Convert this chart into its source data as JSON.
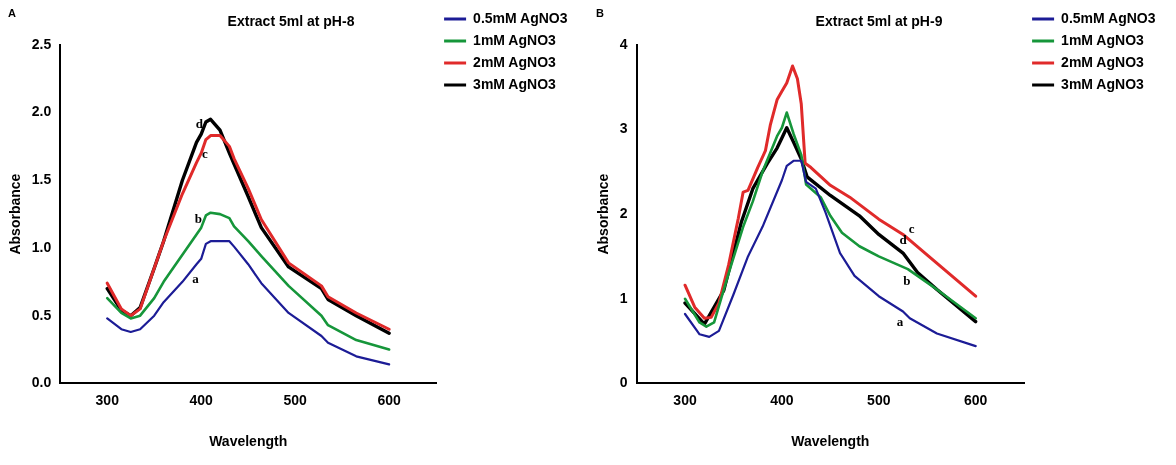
{
  "chart_data": [
    {
      "type": "line",
      "title": "Extract 5ml at pH-8",
      "xlabel": "Wavelength",
      "ylabel": "Absorbance",
      "xlim": [
        250,
        650
      ],
      "xticks": [
        300,
        400,
        500,
        600
      ],
      "ylim": [
        0,
        2.5
      ],
      "yticks": [
        {
          "value": 0,
          "label": "0.0"
        },
        {
          "value": 0.5,
          "label": "0.5"
        },
        {
          "value": 1,
          "label": "1.0"
        },
        {
          "value": 1.5,
          "label": "1.5"
        },
        {
          "value": 2,
          "label": "2.0"
        },
        {
          "value": 2.5,
          "label": "2.5"
        }
      ],
      "grid": false,
      "legend": "top right",
      "marker": "none",
      "line_style": "solid",
      "x": [
        300,
        315,
        325,
        335,
        350,
        360,
        380,
        395,
        400,
        405,
        410,
        420,
        430,
        435,
        450,
        464,
        493,
        528,
        535,
        565,
        600
      ],
      "series": [
        {
          "name": "0.5mM AgNO3",
          "color": "#1c1c96",
          "values": [
            0.48,
            0.4,
            0.38,
            0.4,
            0.5,
            0.6,
            0.75,
            0.88,
            0.92,
            1.03,
            1.05,
            1.05,
            1.05,
            1.01,
            0.88,
            0.74,
            0.52,
            0.35,
            0.3,
            0.2,
            0.14
          ]
        },
        {
          "name": "1mM AgNO3",
          "color": "#16963a",
          "values": [
            0.63,
            0.52,
            0.48,
            0.5,
            0.63,
            0.75,
            0.95,
            1.1,
            1.15,
            1.24,
            1.26,
            1.25,
            1.22,
            1.16,
            1.05,
            0.94,
            0.72,
            0.5,
            0.43,
            0.32,
            0.25
          ]
        },
        {
          "name": "2mM AgNO3",
          "color": "#e02a2a",
          "values": [
            0.74,
            0.55,
            0.5,
            0.55,
            0.85,
            1.05,
            1.4,
            1.63,
            1.7,
            1.8,
            1.83,
            1.83,
            1.75,
            1.66,
            1.44,
            1.21,
            0.89,
            0.72,
            0.64,
            0.52,
            0.4
          ]
        },
        {
          "name": "3mM AgNO3",
          "color": "#000000",
          "values": [
            0.7,
            0.54,
            0.5,
            0.56,
            0.85,
            1.05,
            1.5,
            1.78,
            1.84,
            1.93,
            1.95,
            1.87,
            1.7,
            1.62,
            1.38,
            1.15,
            0.86,
            0.7,
            0.62,
            0.5,
            0.37
          ]
        }
      ],
      "annotations": [
        "A",
        {
          "text": "d",
          "x": 398,
          "y": 1.82
        },
        {
          "text": "c",
          "x": 404,
          "y": 1.78
        },
        {
          "text": "b",
          "x": 397,
          "y": 1.12
        },
        {
          "text": "a",
          "x": 394,
          "y": 0.86
        }
      ]
    },
    {
      "type": "line",
      "title": "Extract 5ml at pH-9",
      "xlabel": "Wavelength",
      "ylabel": "Absorbance",
      "xlim": [
        250,
        650
      ],
      "xticks": [
        300,
        400,
        500,
        600
      ],
      "ylim": [
        0,
        4
      ],
      "yticks": [
        0,
        1,
        2,
        3,
        4
      ],
      "grid": false,
      "legend": "top right",
      "marker": "none",
      "line_style": "solid",
      "series": [
        {
          "name": "0.5mM AgNO3",
          "color": "#1c1c96",
          "x": [
            300,
            315,
            325,
            335,
            350,
            365,
            380,
            400,
            405,
            412,
            420,
            425,
            435,
            445,
            460,
            475,
            500,
            525,
            532,
            560,
            600
          ],
          "values": [
            0.82,
            0.58,
            0.55,
            0.62,
            1.05,
            1.5,
            1.85,
            2.4,
            2.57,
            2.63,
            2.63,
            2.38,
            2.3,
            2.02,
            1.54,
            1.27,
            1.03,
            0.85,
            0.77,
            0.59,
            0.44
          ]
        },
        {
          "name": "1mM AgNO3",
          "color": "#16963a",
          "x": [
            300,
            315,
            322,
            330,
            345,
            360,
            370,
            380,
            395,
            400,
            405,
            412,
            420,
            425,
            440,
            450,
            462,
            480,
            500,
            530,
            560,
            600
          ],
          "values": [
            1.0,
            0.72,
            0.67,
            0.72,
            1.3,
            1.85,
            2.15,
            2.5,
            2.92,
            3.02,
            3.2,
            2.95,
            2.7,
            2.35,
            2.2,
            1.98,
            1.78,
            1.62,
            1.5,
            1.35,
            1.11,
            0.77
          ]
        },
        {
          "name": "2mM AgNO3",
          "color": "#e02a2a",
          "x": [
            300,
            310,
            320,
            327,
            335,
            345,
            355,
            360,
            365,
            375,
            383,
            388,
            395,
            400,
            405,
            411,
            416,
            420,
            424,
            430,
            450,
            470,
            500,
            525,
            600
          ],
          "values": [
            1.16,
            0.9,
            0.77,
            0.78,
            0.95,
            1.4,
            1.95,
            2.26,
            2.28,
            2.55,
            2.75,
            3.05,
            3.35,
            3.45,
            3.55,
            3.75,
            3.6,
            3.3,
            2.6,
            2.55,
            2.34,
            2.2,
            1.94,
            1.76,
            1.03
          ]
        },
        {
          "name": "3mM AgNO3",
          "color": "#000000",
          "x": [
            300,
            320,
            340,
            358,
            370,
            385,
            395,
            400,
            405,
            412,
            420,
            426,
            450,
            480,
            500,
            525,
            540,
            560,
            600
          ],
          "values": [
            0.95,
            0.7,
            1.1,
            1.9,
            2.3,
            2.6,
            2.78,
            2.9,
            3.02,
            2.85,
            2.65,
            2.44,
            2.22,
            1.98,
            1.76,
            1.54,
            1.31,
            1.11,
            0.73
          ]
        }
      ],
      "annotations": [
        "B",
        {
          "text": "c",
          "x": 534,
          "y": 1.67
        },
        {
          "text": "d",
          "x": 525,
          "y": 1.54
        },
        {
          "text": "b",
          "x": 529,
          "y": 1.355
        },
        {
          "text": "a",
          "x": 522,
          "y": 0.87
        }
      ]
    }
  ]
}
